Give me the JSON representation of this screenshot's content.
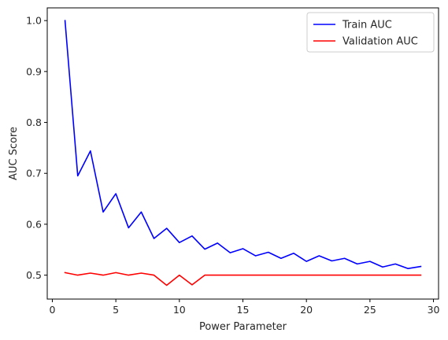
{
  "chart_data": {
    "type": "line",
    "title": "",
    "xlabel": "Power Parameter",
    "ylabel": "AUC Score",
    "xlim": [
      -0.4,
      30.4
    ],
    "ylim": [
      0.453,
      1.025
    ],
    "xticks": [
      0,
      5,
      10,
      15,
      20,
      25,
      30
    ],
    "yticks": [
      0.5,
      0.6,
      0.7,
      0.8,
      0.9,
      1.0
    ],
    "xtick_labels": [
      "0",
      "5",
      "10",
      "15",
      "20",
      "25",
      "30"
    ],
    "ytick_labels": [
      "0.5",
      "0.6",
      "0.7",
      "0.8",
      "0.9",
      "1.0"
    ],
    "grid": false,
    "legend_position": "top-right",
    "x": [
      1,
      2,
      3,
      4,
      5,
      6,
      7,
      8,
      9,
      10,
      11,
      12,
      13,
      14,
      15,
      16,
      17,
      18,
      19,
      20,
      21,
      22,
      23,
      24,
      25,
      26,
      27,
      28,
      29
    ],
    "series": [
      {
        "name": "Train AUC",
        "color": "#0000ff",
        "values": [
          1.0,
          0.695,
          0.744,
          0.624,
          0.66,
          0.593,
          0.624,
          0.572,
          0.592,
          0.564,
          0.577,
          0.551,
          0.563,
          0.544,
          0.552,
          0.538,
          0.545,
          0.533,
          0.543,
          0.527,
          0.538,
          0.528,
          0.533,
          0.522,
          0.527,
          0.516,
          0.522,
          0.513,
          0.517
        ]
      },
      {
        "name": "Validation AUC",
        "color": "#ff0000",
        "values": [
          0.505,
          0.5,
          0.504,
          0.5,
          0.505,
          0.5,
          0.504,
          0.5,
          0.48,
          0.5,
          0.481,
          0.5,
          0.5,
          0.5,
          0.5,
          0.5,
          0.5,
          0.5,
          0.5,
          0.5,
          0.5,
          0.5,
          0.5,
          0.5,
          0.5,
          0.5,
          0.5,
          0.5,
          0.5
        ]
      }
    ]
  }
}
